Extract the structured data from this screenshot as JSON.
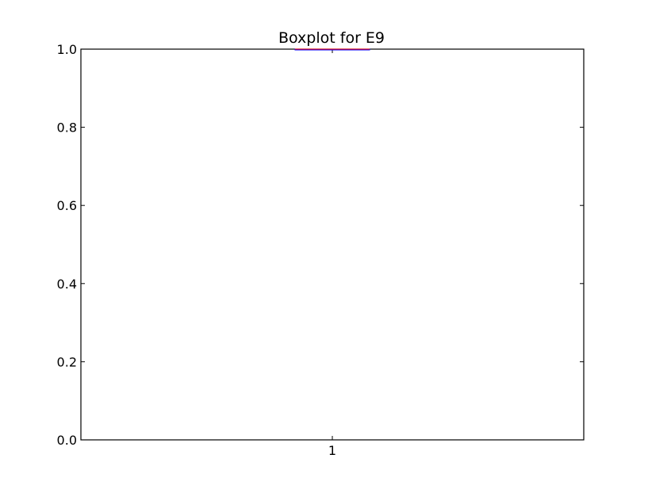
{
  "chart_data": {
    "type": "boxplot",
    "title": "Boxplot for E9",
    "xlabel": "",
    "ylabel": "",
    "categories": [
      "1"
    ],
    "ylim": [
      0.0,
      1.0
    ],
    "yticks": [
      "0.0",
      "0.2",
      "0.4",
      "0.6",
      "0.8",
      "1.0"
    ],
    "grid": false,
    "series": [
      {
        "category": "1",
        "min": 1.0,
        "q1": 1.0,
        "median": 1.0,
        "q3": 1.0,
        "max": 1.0
      }
    ],
    "colors": {
      "box": "#0000ff",
      "median": "#ff0000",
      "axis": "#000000"
    }
  }
}
